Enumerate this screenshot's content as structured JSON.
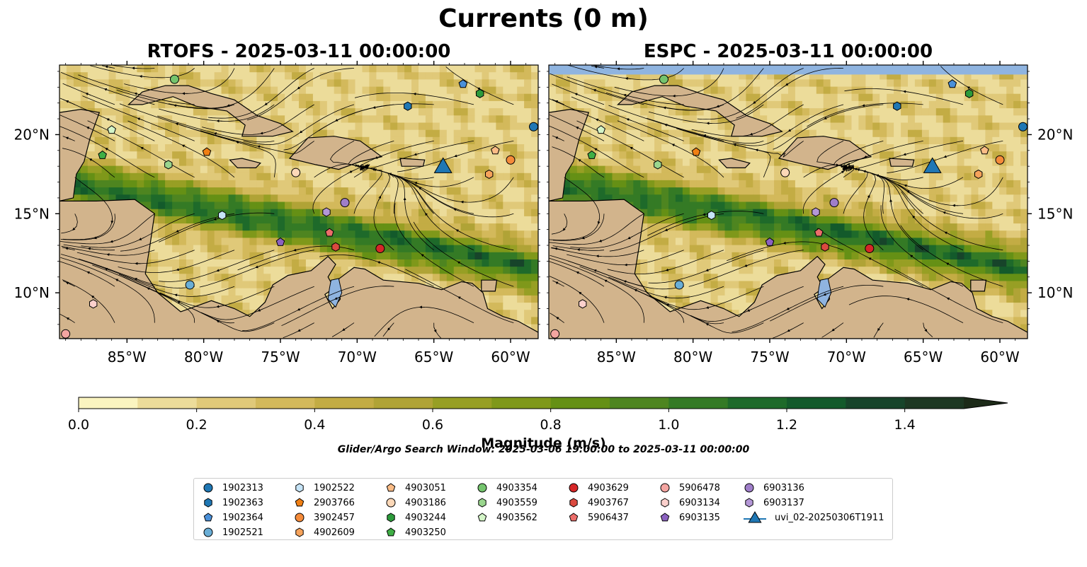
{
  "figure": {
    "suptitle": "Currents (0 m)",
    "search_window": "Glider/Argo Search Window: 2025-03-06 19:00:00 to 2025-03-11 00:00:00"
  },
  "chart_data": [
    {
      "type": "heatmap",
      "title": "RTOFS - 2025-03-11 00:00:00",
      "model": "RTOFS",
      "time": "2025-03-11 00:00:00",
      "xlim": [
        -89.4,
        -58.2
      ],
      "ylim": [
        7.1,
        24.4
      ],
      "x_ticks": [
        "85°W",
        "80°W",
        "75°W",
        "70°W",
        "65°W",
        "60°W"
      ],
      "x_tick_values": [
        -85,
        -80,
        -75,
        -70,
        -65,
        -60
      ],
      "y_ticks": [
        "10°N",
        "15°N",
        "20°N"
      ],
      "y_tick_values": [
        10,
        15,
        20
      ],
      "y_axis_side": "left",
      "field": "current magnitude with streamlines",
      "markers": [
        {
          "id": "1902313",
          "lon": -58.5,
          "lat": 20.5
        },
        {
          "id": "1902363",
          "lon": -66.7,
          "lat": 21.8
        },
        {
          "id": "1902364",
          "lon": -63.1,
          "lat": 23.2
        },
        {
          "id": "1902521",
          "lon": -80.9,
          "lat": 10.5
        },
        {
          "id": "1902522",
          "lon": -78.8,
          "lat": 14.9
        },
        {
          "id": "2903766",
          "lon": -79.8,
          "lat": 18.9
        },
        {
          "id": "3902457",
          "lon": -60.0,
          "lat": 18.4
        },
        {
          "id": "4902609",
          "lon": -61.4,
          "lat": 17.5
        },
        {
          "id": "4903051",
          "lon": -61.0,
          "lat": 19.0
        },
        {
          "id": "4903186",
          "lon": -74.0,
          "lat": 17.6
        },
        {
          "id": "4903244",
          "lon": -62.0,
          "lat": 22.6
        },
        {
          "id": "4903250",
          "lon": -86.6,
          "lat": 18.7
        },
        {
          "id": "4903354",
          "lon": -81.9,
          "lat": 23.5
        },
        {
          "id": "4903559",
          "lon": -82.3,
          "lat": 18.1
        },
        {
          "id": "4903562",
          "lon": -86.0,
          "lat": 20.3
        },
        {
          "id": "4903629",
          "lon": -68.5,
          "lat": 12.8
        },
        {
          "id": "4903767",
          "lon": -71.4,
          "lat": 12.9
        },
        {
          "id": "5906437",
          "lon": -71.8,
          "lat": 13.8
        },
        {
          "id": "5906478",
          "lon": -89.0,
          "lat": 7.4
        },
        {
          "id": "6903134",
          "lon": -87.2,
          "lat": 9.3
        },
        {
          "id": "6903135",
          "lon": -75.0,
          "lat": 13.2
        },
        {
          "id": "6903136",
          "lon": -70.8,
          "lat": 15.7
        },
        {
          "id": "6903137",
          "lon": -72.0,
          "lat": 15.1
        },
        {
          "id": "uvi_02-20250306T1911",
          "lon": -64.4,
          "lat": 17.9
        }
      ]
    },
    {
      "type": "heatmap",
      "title": "ESPC - 2025-03-11 00:00:00",
      "model": "ESPC",
      "time": "2025-03-11 00:00:00",
      "xlim": [
        -89.4,
        -58.2
      ],
      "ylim": [
        7.1,
        24.4
      ],
      "x_ticks": [
        "85°W",
        "80°W",
        "75°W",
        "70°W",
        "65°W",
        "60°W"
      ],
      "x_tick_values": [
        -85,
        -80,
        -75,
        -70,
        -65,
        -60
      ],
      "y_ticks": [
        "10°N",
        "15°N",
        "20°N"
      ],
      "y_tick_values": [
        10,
        15,
        20
      ],
      "y_axis_side": "right",
      "field": "current magnitude with streamlines",
      "no_data_band_above_lat": 23.8,
      "markers": "same as RTOFS panel"
    }
  ],
  "colorbar": {
    "label": "Magnitude (m/s)",
    "min": 0.0,
    "max": 1.5,
    "step": 0.1,
    "extend": "max",
    "tick_labels": [
      "0.0",
      "0.2",
      "0.4",
      "0.6",
      "0.8",
      "1.0",
      "1.2",
      "1.4"
    ],
    "tick_values": [
      0.0,
      0.2,
      0.4,
      0.6,
      0.8,
      1.0,
      1.2,
      1.4
    ],
    "colors": [
      "#faf4c0",
      "#ecdc9a",
      "#e0c979",
      "#d3b95b",
      "#c3ac44",
      "#b0a336",
      "#979f24",
      "#7f981a",
      "#659015",
      "#4e8520",
      "#347a25",
      "#1e6a2a",
      "#135a2b",
      "#17442a",
      "#1d3722",
      "#1c2a18"
    ]
  },
  "legend": {
    "location": "lower center",
    "entries": [
      {
        "label": "1902313",
        "color": "#1f77b4",
        "shape": "circle"
      },
      {
        "label": "1902363",
        "color": "#1f77b4",
        "shape": "hexagon"
      },
      {
        "label": "1902364",
        "color": "#4a90d9",
        "shape": "pentagon"
      },
      {
        "label": "1902521",
        "color": "#6aaed6",
        "shape": "circle"
      },
      {
        "label": "1902522",
        "color": "#c6e4f7",
        "shape": "hexagon"
      },
      {
        "label": "2903766",
        "color": "#f07f14",
        "shape": "pentagon"
      },
      {
        "label": "3902457",
        "color": "#f58b3a",
        "shape": "circle"
      },
      {
        "label": "4902609",
        "color": "#f6a35b",
        "shape": "hexagon"
      },
      {
        "label": "4903051",
        "color": "#fbbc86",
        "shape": "pentagon"
      },
      {
        "label": "4903186",
        "color": "#fcd8b8",
        "shape": "circle"
      },
      {
        "label": "4903244",
        "color": "#2c9b3b",
        "shape": "hexagon"
      },
      {
        "label": "4903250",
        "color": "#3fae45",
        "shape": "pentagon"
      },
      {
        "label": "4903354",
        "color": "#74c46d",
        "shape": "circle"
      },
      {
        "label": "4903559",
        "color": "#9ad68e",
        "shape": "hexagon"
      },
      {
        "label": "4903562",
        "color": "#d4f5c8",
        "shape": "pentagon"
      },
      {
        "label": "4903629",
        "color": "#d62728",
        "shape": "circle"
      },
      {
        "label": "4903767",
        "color": "#db4a3f",
        "shape": "hexagon"
      },
      {
        "label": "5906437",
        "color": "#ec6e6a",
        "shape": "pentagon"
      },
      {
        "label": "5906478",
        "color": "#f4a5a1",
        "shape": "circle"
      },
      {
        "label": "6903134",
        "color": "#fbd0cc",
        "shape": "hexagon"
      },
      {
        "label": "6903135",
        "color": "#8b62c0",
        "shape": "pentagon"
      },
      {
        "label": "6903136",
        "color": "#9f7ec9",
        "shape": "circle"
      },
      {
        "label": "6903137",
        "color": "#b497d7",
        "shape": "hexagon"
      },
      {
        "label": "uvi_02-20250306T1911",
        "color": "#1f77b4",
        "shape": "triangle"
      }
    ]
  }
}
